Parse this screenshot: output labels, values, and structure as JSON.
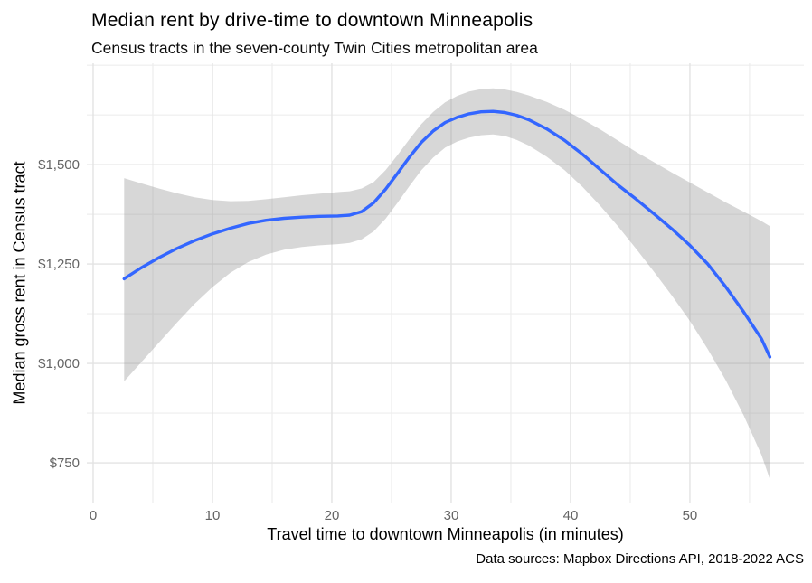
{
  "header": {
    "title": "Median rent by drive-time to downtown Minneapolis",
    "subtitle": "Census tracts in the seven-county Twin Cities metropolitan area"
  },
  "caption": "Data sources: Mapbox Directions API, 2018-2022 ACS",
  "colors": {
    "line": "#3366FF",
    "ribbon": "rgba(150,150,150,0.38)",
    "grid_major": "#E3E3E3",
    "grid_minor": "#EDEDED",
    "tick_label": "#646464",
    "text": "#000000",
    "background": "#FFFFFF"
  },
  "chart_data": {
    "type": "line",
    "title": "Median rent by drive-time to downtown Minneapolis",
    "subtitle": "Census tracts in the seven-county Twin Cities metropolitan area",
    "xlabel": "Travel time to downtown Minneapolis (in minutes)",
    "ylabel": "Median gross rent in Census tract",
    "caption": "Data sources: Mapbox Directions API, 2018-2022 ACS",
    "xlim": [
      -0.53,
      59.55
    ],
    "ylim": [
      650,
      1755
    ],
    "grid": true,
    "legend": "none",
    "x_ticks": {
      "major": [
        {
          "value": 0,
          "label": "0"
        },
        {
          "value": 10,
          "label": "10"
        },
        {
          "value": 20,
          "label": "20"
        },
        {
          "value": 30,
          "label": "30"
        },
        {
          "value": 40,
          "label": "40"
        },
        {
          "value": 50,
          "label": "50"
        }
      ],
      "minor": [
        5,
        15,
        25,
        35,
        45,
        55
      ]
    },
    "y_ticks": {
      "major": [
        {
          "value": 750,
          "label": "$750"
        },
        {
          "value": 1000,
          "label": "$1,000"
        },
        {
          "value": 1250,
          "label": "$1,250"
        },
        {
          "value": 1500,
          "label": "$1,500"
        }
      ],
      "minor": [
        875,
        1125,
        1375,
        1625,
        1750
      ]
    },
    "series": [
      {
        "name": "GAM smooth of median gross rent with 95% confidence band",
        "type": "smooth-line-with-ribbon",
        "line_color": "#3366FF",
        "ribbon_color": "rgba(150,150,150,0.38)",
        "x": [
          2.6,
          4,
          5.5,
          7,
          8.5,
          10,
          11.5,
          13,
          14.5,
          16,
          17.5,
          19,
          20.5,
          21.5,
          22.5,
          23.5,
          24.5,
          25.5,
          26.5,
          27.5,
          28.5,
          29.5,
          30.5,
          31.5,
          32.5,
          33.5,
          34.5,
          35.5,
          36.5,
          38,
          39.5,
          41,
          42.5,
          44,
          45.5,
          47,
          48.5,
          50,
          51.5,
          53,
          54.5,
          56,
          56.7
        ],
        "y": [
          1213,
          1240,
          1266,
          1289,
          1309,
          1326,
          1340,
          1352,
          1360,
          1365,
          1368,
          1370,
          1371,
          1373,
          1382,
          1404,
          1438,
          1478,
          1519,
          1556,
          1585,
          1606,
          1619,
          1628,
          1633,
          1634,
          1631,
          1624,
          1613,
          1590,
          1561,
          1526,
          1487,
          1448,
          1413,
          1376,
          1338,
          1297,
          1250,
          1193,
          1130,
          1062,
          1016
        ],
        "upper": [
          1466,
          1453,
          1440,
          1428,
          1418,
          1411,
          1408,
          1409,
          1413,
          1418,
          1423,
          1427,
          1431,
          1433,
          1440,
          1456,
          1486,
          1524,
          1564,
          1602,
          1633,
          1657,
          1673,
          1684,
          1690,
          1692,
          1689,
          1683,
          1674,
          1658,
          1638,
          1614,
          1588,
          1560,
          1532,
          1506,
          1480,
          1455,
          1430,
          1405,
          1382,
          1358,
          1345
        ],
        "lower": [
          955,
          1002,
          1052,
          1102,
          1150,
          1192,
          1228,
          1255,
          1274,
          1286,
          1293,
          1297,
          1300,
          1303,
          1312,
          1332,
          1364,
          1404,
          1446,
          1486,
          1518,
          1543,
          1558,
          1568,
          1574,
          1576,
          1572,
          1562,
          1548,
          1520,
          1486,
          1444,
          1396,
          1344,
          1288,
          1230,
          1170,
          1107,
          1036,
          958,
          870,
          770,
          709
        ]
      }
    ]
  }
}
